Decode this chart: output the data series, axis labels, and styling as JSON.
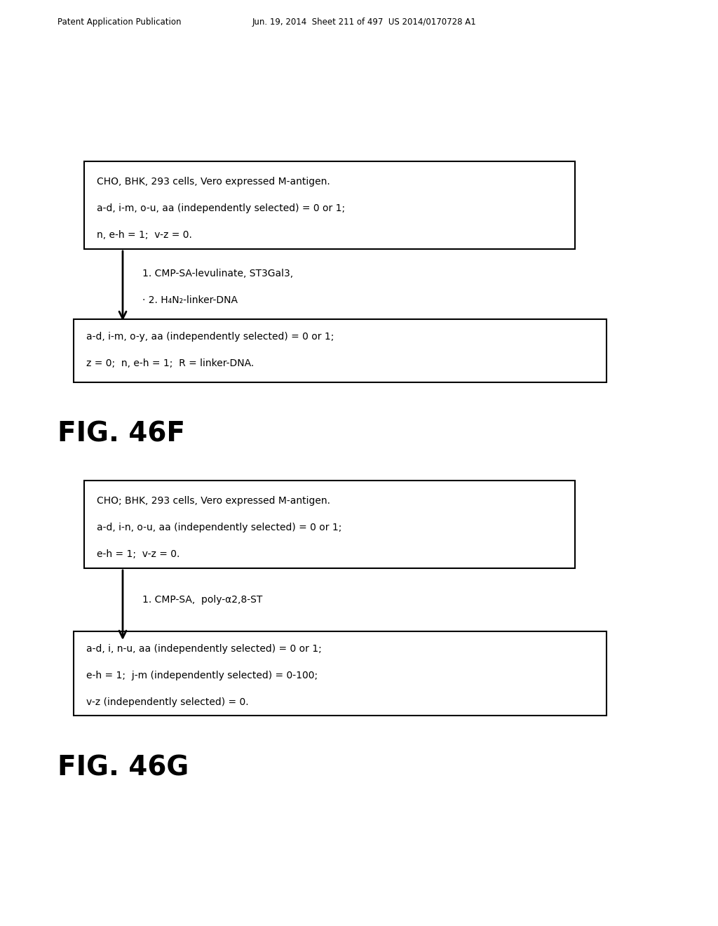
{
  "header_left": "Patent Application Publication",
  "header_center": "Jun. 19, 2014  Sheet 211 of 497  US 2014/0170728 A1",
  "bg_color": "#ffffff",
  "fig46f_label": "FIG. 46F",
  "fig46g_label": "FIG. 46G",
  "box1_lines": [
    "CHO, BHK, 293 cells, Vero expressed M-antigen.",
    "a-d, i-m, o-u, aa (independently selected) = 0 or 1;",
    "n, e-h = 1;  v-z = 0."
  ],
  "arrow1_label1": "1. CMP-SA-levulinate, ST3Gal3,",
  "arrow1_label2": "· 2. H₄N₂-linker-DNA",
  "box2_lines": [
    "a-d, i-m, o-y, aa (independently selected) = 0 or 1;",
    "z = 0;  n, e-h = 1;  R = linker-DNA."
  ],
  "box3_lines": [
    "CHO; BHK, 293 cells, Vero expressed M-antigen.",
    "a-d, i-n, o-u, aa (independently selected) = 0 or 1;",
    "e-h = 1;  v-z = 0."
  ],
  "arrow2_label": "1. CMP-SA,  poly-α2,8-ST",
  "box4_lines": [
    "a-d, i, n-u, aa (independently selected) = 0 or 1;",
    "e-h = 1;  j-m (independently selected) = 0-100;",
    "v-z (independently selected) = 0."
  ]
}
